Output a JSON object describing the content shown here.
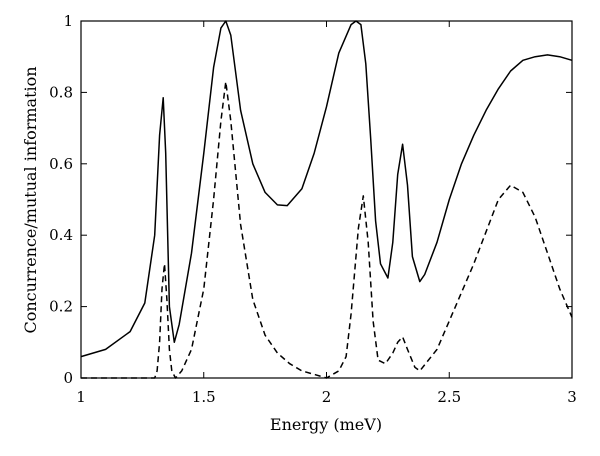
{
  "chart_data": {
    "type": "line",
    "title": "",
    "xlabel": "Energy (meV)",
    "ylabel": "Concurrence/mutual information",
    "xlim": [
      1,
      3
    ],
    "ylim": [
      0,
      1
    ],
    "xticks": [
      1,
      1.5,
      2,
      2.5,
      3
    ],
    "xtick_labels": [
      "1",
      "1.5",
      "2",
      "2.5",
      "3"
    ],
    "yticks": [
      0,
      0.2,
      0.4,
      0.6,
      0.8,
      1
    ],
    "ytick_labels": [
      "0",
      "0.2",
      "0.4",
      "0.6",
      "0.8",
      "1"
    ],
    "grid": false,
    "legend": "none",
    "series": [
      {
        "style": "solid",
        "color": "#000000",
        "x": [
          1.0,
          1.1,
          1.2,
          1.26,
          1.3,
          1.32,
          1.335,
          1.345,
          1.36,
          1.38,
          1.4,
          1.45,
          1.5,
          1.54,
          1.57,
          1.59,
          1.61,
          1.65,
          1.7,
          1.75,
          1.8,
          1.84,
          1.9,
          1.95,
          2.0,
          2.05,
          2.1,
          2.12,
          2.14,
          2.16,
          2.18,
          2.2,
          2.22,
          2.25,
          2.27,
          2.29,
          2.31,
          2.33,
          2.35,
          2.38,
          2.4,
          2.45,
          2.5,
          2.55,
          2.6,
          2.65,
          2.7,
          2.75,
          2.8,
          2.85,
          2.9,
          2.95,
          3.0
        ],
        "y": [
          0.06,
          0.08,
          0.13,
          0.21,
          0.4,
          0.68,
          0.785,
          0.63,
          0.2,
          0.1,
          0.15,
          0.35,
          0.63,
          0.87,
          0.98,
          1.0,
          0.96,
          0.75,
          0.6,
          0.52,
          0.485,
          0.483,
          0.53,
          0.63,
          0.76,
          0.91,
          0.99,
          1.0,
          0.99,
          0.88,
          0.67,
          0.44,
          0.32,
          0.28,
          0.38,
          0.57,
          0.655,
          0.54,
          0.34,
          0.27,
          0.29,
          0.38,
          0.5,
          0.6,
          0.68,
          0.75,
          0.81,
          0.86,
          0.89,
          0.9,
          0.905,
          0.9,
          0.89
        ]
      },
      {
        "style": "dashed",
        "color": "#000000",
        "x": [
          1.0,
          1.2,
          1.3,
          1.31,
          1.32,
          1.33,
          1.34,
          1.35,
          1.36,
          1.37,
          1.385,
          1.41,
          1.45,
          1.5,
          1.54,
          1.57,
          1.59,
          1.61,
          1.65,
          1.7,
          1.75,
          1.8,
          1.85,
          1.9,
          1.95,
          2.0,
          2.05,
          2.08,
          2.1,
          2.13,
          2.15,
          2.17,
          2.19,
          2.21,
          2.24,
          2.27,
          2.29,
          2.31,
          2.33,
          2.36,
          2.38,
          2.45,
          2.5,
          2.6,
          2.7,
          2.75,
          2.8,
          2.85,
          2.9,
          2.95,
          3.0
        ],
        "y": [
          0.0,
          0.0,
          0.0,
          0.02,
          0.1,
          0.25,
          0.32,
          0.22,
          0.08,
          0.02,
          0.0,
          0.02,
          0.08,
          0.25,
          0.5,
          0.72,
          0.83,
          0.72,
          0.43,
          0.22,
          0.12,
          0.07,
          0.04,
          0.02,
          0.01,
          0.0,
          0.02,
          0.06,
          0.18,
          0.42,
          0.51,
          0.38,
          0.16,
          0.05,
          0.04,
          0.07,
          0.1,
          0.115,
          0.08,
          0.03,
          0.02,
          0.08,
          0.16,
          0.32,
          0.5,
          0.54,
          0.52,
          0.45,
          0.35,
          0.25,
          0.17
        ]
      }
    ]
  }
}
